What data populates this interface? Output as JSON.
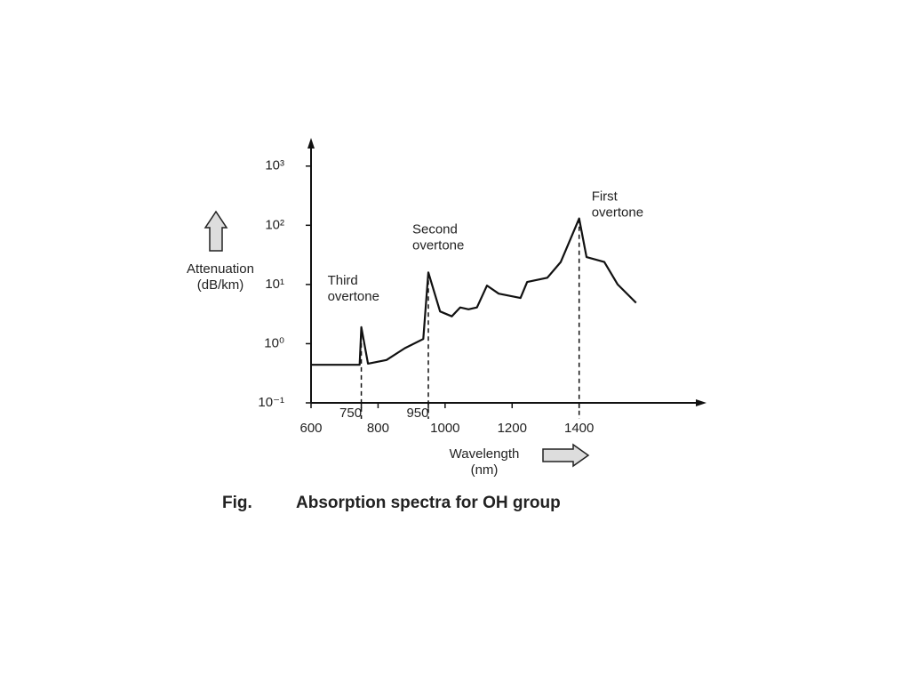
{
  "chart_data": {
    "type": "line",
    "caption_label": "Fig.",
    "caption": "Absorption spectra for OH group",
    "y_label": [
      "Attenuation",
      "(dB/km)"
    ],
    "x_label": [
      "Wavelength",
      "(nm)"
    ],
    "log_y": true,
    "color": "#111111",
    "x": [
      600,
      745,
      750,
      770,
      825,
      880,
      935,
      950,
      985,
      1020,
      1045,
      1070,
      1095,
      1125,
      1160,
      1225,
      1245,
      1305,
      1345,
      1400,
      1422,
      1475,
      1515,
      1570
    ],
    "values": [
      0.44,
      0.44,
      1.9,
      0.46,
      0.53,
      0.84,
      1.2,
      16,
      3.5,
      2.9,
      4.1,
      3.8,
      4.1,
      9.6,
      7,
      5.9,
      11,
      13,
      24,
      130,
      29,
      24,
      10,
      4.9
    ],
    "annotations": [
      {
        "text": [
          "Third",
          "overtone"
        ],
        "point": 2
      },
      {
        "text": [
          "Second",
          "overtone"
        ],
        "point": 7
      },
      {
        "text": [
          "First",
          "overtone"
        ],
        "point": 19
      }
    ],
    "xlim": [
      600,
      1780
    ],
    "xticks": [
      600,
      750,
      800,
      950,
      1000,
      1200,
      1400
    ],
    "ylim": [
      0.1,
      3000
    ],
    "yticks": [
      {
        "value": 0.1,
        "label": "10⁻¹"
      },
      {
        "value": 1,
        "label": "10⁰"
      },
      {
        "value": 10,
        "label": "10¹"
      },
      {
        "value": 100,
        "label": "10²"
      },
      {
        "value": 1000,
        "label": "10³"
      }
    ]
  }
}
